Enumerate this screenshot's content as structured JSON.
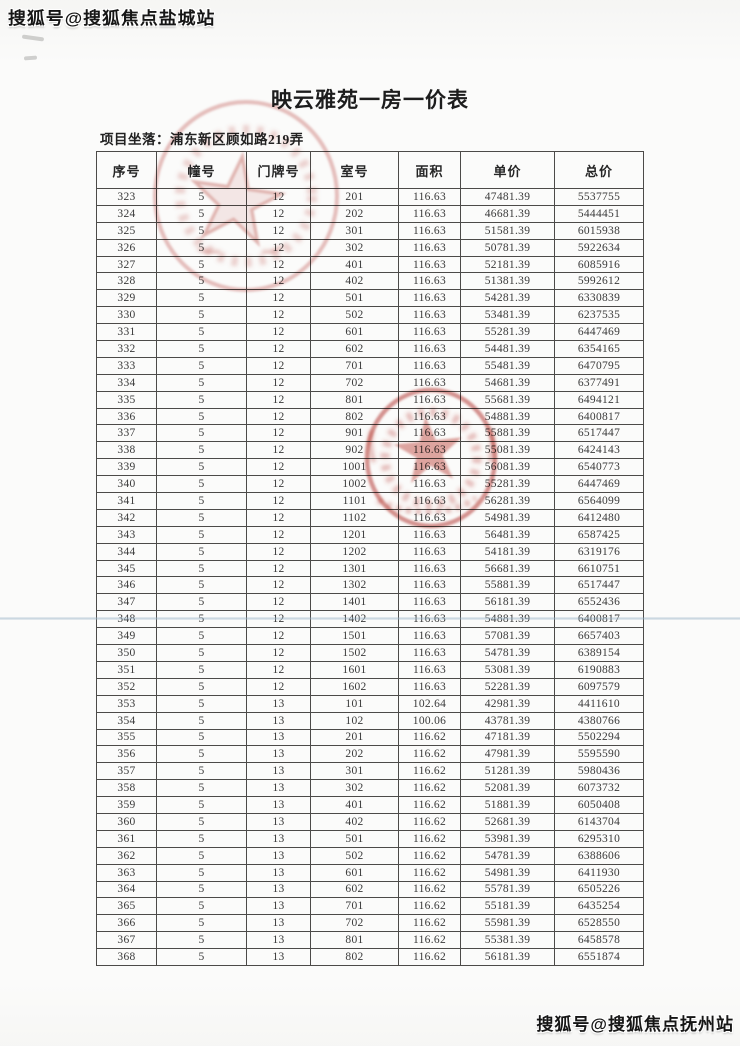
{
  "watermarks": {
    "top_left": "搜狐号@搜狐焦点盐城站",
    "bottom_right": "搜狐号@搜狐焦点抚州站"
  },
  "document": {
    "title": "映云雅苑一房一价表",
    "location_line": "项目坐落：浦东新区顾如路219弄"
  },
  "table": {
    "columns": [
      "序号",
      "幢号",
      "门牌号",
      "室号",
      "面积",
      "单价",
      "总价"
    ],
    "rows": [
      [
        "323",
        "5",
        "12",
        "201",
        "116.63",
        "47481.39",
        "5537755"
      ],
      [
        "324",
        "5",
        "12",
        "202",
        "116.63",
        "46681.39",
        "5444451"
      ],
      [
        "325",
        "5",
        "12",
        "301",
        "116.63",
        "51581.39",
        "6015938"
      ],
      [
        "326",
        "5",
        "12",
        "302",
        "116.63",
        "50781.39",
        "5922634"
      ],
      [
        "327",
        "5",
        "12",
        "401",
        "116.63",
        "52181.39",
        "6085916"
      ],
      [
        "328",
        "5",
        "12",
        "402",
        "116.63",
        "51381.39",
        "5992612"
      ],
      [
        "329",
        "5",
        "12",
        "501",
        "116.63",
        "54281.39",
        "6330839"
      ],
      [
        "330",
        "5",
        "12",
        "502",
        "116.63",
        "53481.39",
        "6237535"
      ],
      [
        "331",
        "5",
        "12",
        "601",
        "116.63",
        "55281.39",
        "6447469"
      ],
      [
        "332",
        "5",
        "12",
        "602",
        "116.63",
        "54481.39",
        "6354165"
      ],
      [
        "333",
        "5",
        "12",
        "701",
        "116.63",
        "55481.39",
        "6470795"
      ],
      [
        "334",
        "5",
        "12",
        "702",
        "116.63",
        "54681.39",
        "6377491"
      ],
      [
        "335",
        "5",
        "12",
        "801",
        "116.63",
        "55681.39",
        "6494121"
      ],
      [
        "336",
        "5",
        "12",
        "802",
        "116.63",
        "54881.39",
        "6400817"
      ],
      [
        "337",
        "5",
        "12",
        "901",
        "116.63",
        "55881.39",
        "6517447"
      ],
      [
        "338",
        "5",
        "12",
        "902",
        "116.63",
        "55081.39",
        "6424143"
      ],
      [
        "339",
        "5",
        "12",
        "1001",
        "116.63",
        "56081.39",
        "6540773"
      ],
      [
        "340",
        "5",
        "12",
        "1002",
        "116.63",
        "55281.39",
        "6447469"
      ],
      [
        "341",
        "5",
        "12",
        "1101",
        "116.63",
        "56281.39",
        "6564099"
      ],
      [
        "342",
        "5",
        "12",
        "1102",
        "116.63",
        "54981.39",
        "6412480"
      ],
      [
        "343",
        "5",
        "12",
        "1201",
        "116.63",
        "56481.39",
        "6587425"
      ],
      [
        "344",
        "5",
        "12",
        "1202",
        "116.63",
        "54181.39",
        "6319176"
      ],
      [
        "345",
        "5",
        "12",
        "1301",
        "116.63",
        "56681.39",
        "6610751"
      ],
      [
        "346",
        "5",
        "12",
        "1302",
        "116.63",
        "55881.39",
        "6517447"
      ],
      [
        "347",
        "5",
        "12",
        "1401",
        "116.63",
        "56181.39",
        "6552436"
      ],
      [
        "348",
        "5",
        "12",
        "1402",
        "116.63",
        "54881.39",
        "6400817"
      ],
      [
        "349",
        "5",
        "12",
        "1501",
        "116.63",
        "57081.39",
        "6657403"
      ],
      [
        "350",
        "5",
        "12",
        "1502",
        "116.63",
        "54781.39",
        "6389154"
      ],
      [
        "351",
        "5",
        "12",
        "1601",
        "116.63",
        "53081.39",
        "6190883"
      ],
      [
        "352",
        "5",
        "12",
        "1602",
        "116.63",
        "52281.39",
        "6097579"
      ],
      [
        "353",
        "5",
        "13",
        "101",
        "102.64",
        "42981.39",
        "4411610"
      ],
      [
        "354",
        "5",
        "13",
        "102",
        "100.06",
        "43781.39",
        "4380766"
      ],
      [
        "355",
        "5",
        "13",
        "201",
        "116.62",
        "47181.39",
        "5502294"
      ],
      [
        "356",
        "5",
        "13",
        "202",
        "116.62",
        "47981.39",
        "5595590"
      ],
      [
        "357",
        "5",
        "13",
        "301",
        "116.62",
        "51281.39",
        "5980436"
      ],
      [
        "358",
        "5",
        "13",
        "302",
        "116.62",
        "52081.39",
        "6073732"
      ],
      [
        "359",
        "5",
        "13",
        "401",
        "116.62",
        "51881.39",
        "6050408"
      ],
      [
        "360",
        "5",
        "13",
        "402",
        "116.62",
        "52681.39",
        "6143704"
      ],
      [
        "361",
        "5",
        "13",
        "501",
        "116.62",
        "53981.39",
        "6295310"
      ],
      [
        "362",
        "5",
        "13",
        "502",
        "116.62",
        "54781.39",
        "6388606"
      ],
      [
        "363",
        "5",
        "13",
        "601",
        "116.62",
        "54981.39",
        "6411930"
      ],
      [
        "364",
        "5",
        "13",
        "602",
        "116.62",
        "55781.39",
        "6505226"
      ],
      [
        "365",
        "5",
        "13",
        "701",
        "116.62",
        "55181.39",
        "6435254"
      ],
      [
        "366",
        "5",
        "13",
        "702",
        "116.62",
        "55981.39",
        "6528550"
      ],
      [
        "367",
        "5",
        "13",
        "801",
        "116.62",
        "55381.39",
        "6458578"
      ],
      [
        "368",
        "5",
        "13",
        "802",
        "116.62",
        "56181.39",
        "6551874"
      ]
    ]
  },
  "colors": {
    "stamp_light_red": "#c86a64",
    "stamp_dark_red": "#bc4b45",
    "fold_line_blue": "#97b2c6",
    "table_line": "#4c4a48",
    "text": "#3a3a3a"
  }
}
